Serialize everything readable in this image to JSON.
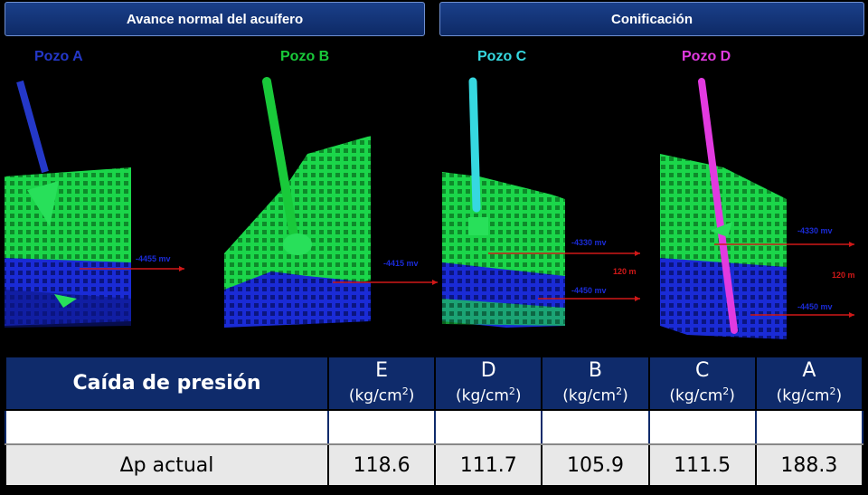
{
  "headers": {
    "left": "Avance normal del acuífero",
    "right": "Conificación"
  },
  "wells": [
    {
      "label": "Pozo A",
      "color": "#2438c8"
    },
    {
      "label": "Pozo B",
      "color": "#19c93a"
    },
    {
      "label": "Pozo C",
      "color": "#36d8e0"
    },
    {
      "label": "Pozo D",
      "color": "#e23ae0"
    }
  ],
  "annotations": {
    "a_depth": "-4455 mv",
    "b_depth": "-4415 mv",
    "c_depth_top": "-4330 mv",
    "c_depth_bottom": "-4450 mv",
    "c_gap": "120 m",
    "d_depth_top": "-4330 mv",
    "d_depth_bottom": "-4450 mv",
    "d_gap": "120 m"
  },
  "table": {
    "title": "Caída de presión",
    "unit_prefix": "(kg/cm",
    "unit_exp": "2",
    "unit_suffix": ")",
    "columns": [
      "E",
      "D",
      "B",
      "C",
      "A"
    ],
    "row_label": "Δp actual",
    "values": [
      "118.6",
      "111.7",
      "105.9",
      "111.5",
      "188.3"
    ]
  },
  "colors": {
    "header_bg": "#0f2b6b",
    "highlight": "#e8151b",
    "mesh_green": "#1bd64a",
    "water_blue": "#1a2bd6",
    "arrow_red": "#d01818"
  }
}
